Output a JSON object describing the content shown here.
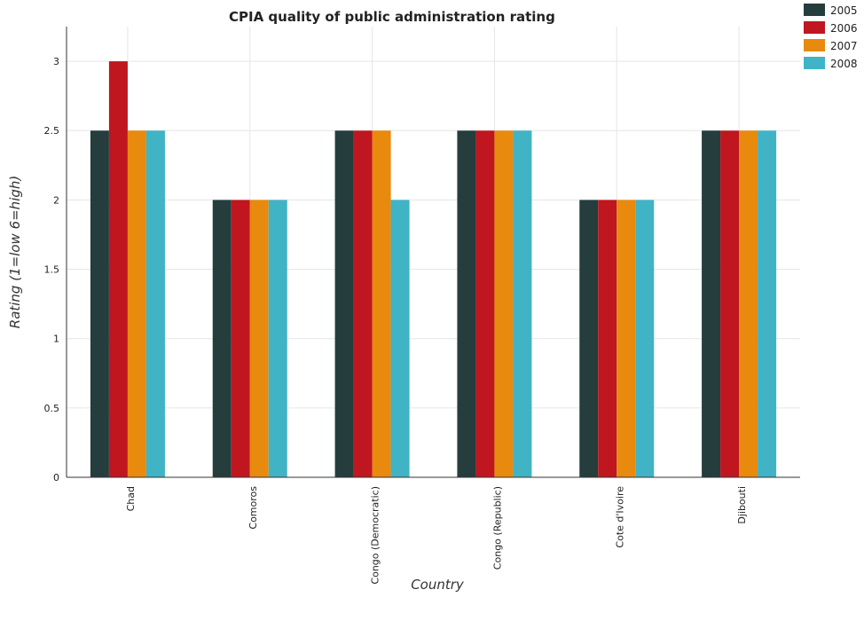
{
  "chart_data": {
    "type": "bar",
    "title": "CPIA quality of public administration rating",
    "xlabel": "Country",
    "ylabel": "Rating (1=low 6=high)",
    "categories": [
      "Chad",
      "Comoros",
      "Congo (Democratic)",
      "Congo (Republic)",
      "Cote d'Ivoire",
      "Djibouti"
    ],
    "series": [
      {
        "name": "2005",
        "color": "#253d3d",
        "values": [
          2.5,
          2.0,
          2.5,
          2.5,
          2.0,
          2.5
        ]
      },
      {
        "name": "2006",
        "color": "#c0161f",
        "values": [
          3.0,
          2.0,
          2.5,
          2.5,
          2.0,
          2.5
        ]
      },
      {
        "name": "2007",
        "color": "#e78a0e",
        "values": [
          2.5,
          2.0,
          2.5,
          2.5,
          2.0,
          2.5
        ]
      },
      {
        "name": "2008",
        "color": "#40b3c5",
        "values": [
          2.5,
          2.0,
          2.0,
          2.5,
          2.0,
          2.5
        ]
      }
    ],
    "ylim": [
      0,
      3.25
    ],
    "yticks": [
      "0",
      "0.5",
      "1",
      "1.5",
      "2",
      "2.5",
      "3"
    ],
    "grid": true,
    "legend_position": "top-right"
  }
}
